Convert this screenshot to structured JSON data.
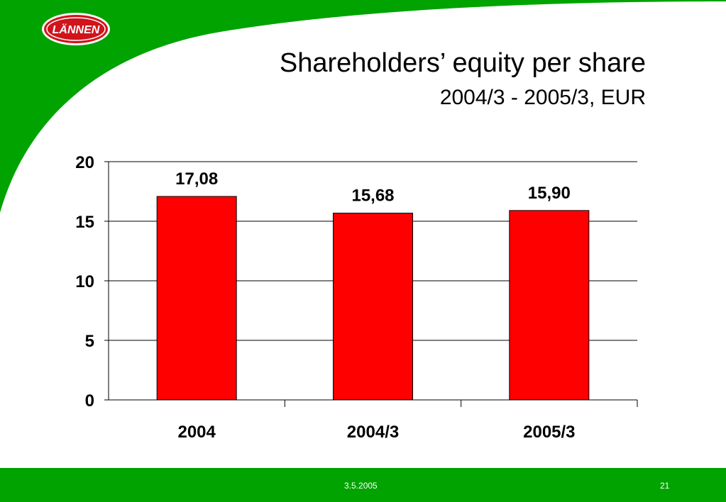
{
  "colors": {
    "brand_green": "#00a300",
    "bar_fill": "#ff0000",
    "logo_red": "#d0141c"
  },
  "logo": {
    "text": "LÄNNEN"
  },
  "slide": {
    "title": "Shareholders’ equity per share",
    "subtitle": "2004/3 - 2005/3, EUR"
  },
  "footer": {
    "date": "3.5.2005",
    "page_number": "21"
  },
  "chart_data": {
    "type": "bar",
    "categories": [
      "2004",
      "2004/3",
      "2005/3"
    ],
    "values": [
      17.08,
      15.68,
      15.9
    ],
    "value_labels": [
      "17,08",
      "15,68",
      "15,90"
    ],
    "yticks": [
      "0",
      "5",
      "10",
      "15",
      "20"
    ],
    "ylim": [
      0,
      20
    ],
    "grid": true,
    "legend": "none"
  }
}
